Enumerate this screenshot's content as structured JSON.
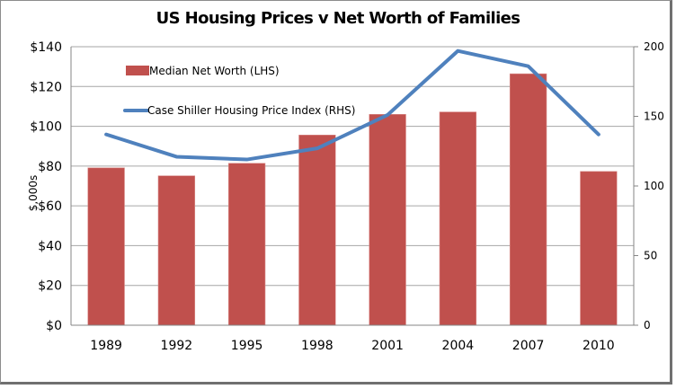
{
  "chart_data": {
    "type": "bar",
    "title": "US Housing Prices v Net Worth of Families",
    "categories": [
      "1989",
      "1992",
      "1995",
      "1998",
      "2001",
      "2004",
      "2007",
      "2010"
    ],
    "series": [
      {
        "name": "Median Net Worth (LHS)",
        "type": "bar",
        "axis": "left",
        "color": "#c0504d",
        "values": [
          79.1,
          75.1,
          81.4,
          95.6,
          106.0,
          107.2,
          126.4,
          77.3
        ]
      },
      {
        "name": "Case Shiller Housing Price Index (RHS)",
        "type": "line",
        "axis": "right",
        "color": "#4f81bd",
        "values": [
          137,
          121,
          119,
          127,
          151,
          197,
          186,
          137
        ]
      }
    ],
    "ylabel": "$,000s",
    "ylim": [
      0,
      140
    ],
    "yticks": [
      "$0",
      "$20",
      "$40",
      "$60",
      "$80",
      "$100",
      "$120",
      "$140"
    ],
    "ytick_values": [
      0,
      20,
      40,
      60,
      80,
      100,
      120,
      140
    ],
    "y2lim": [
      0,
      200
    ],
    "y2ticks": [
      "0",
      "50",
      "100",
      "150",
      "200"
    ],
    "y2tick_values": [
      0,
      50,
      100,
      150,
      200
    ],
    "grid": true,
    "legend_position": "top-left"
  }
}
